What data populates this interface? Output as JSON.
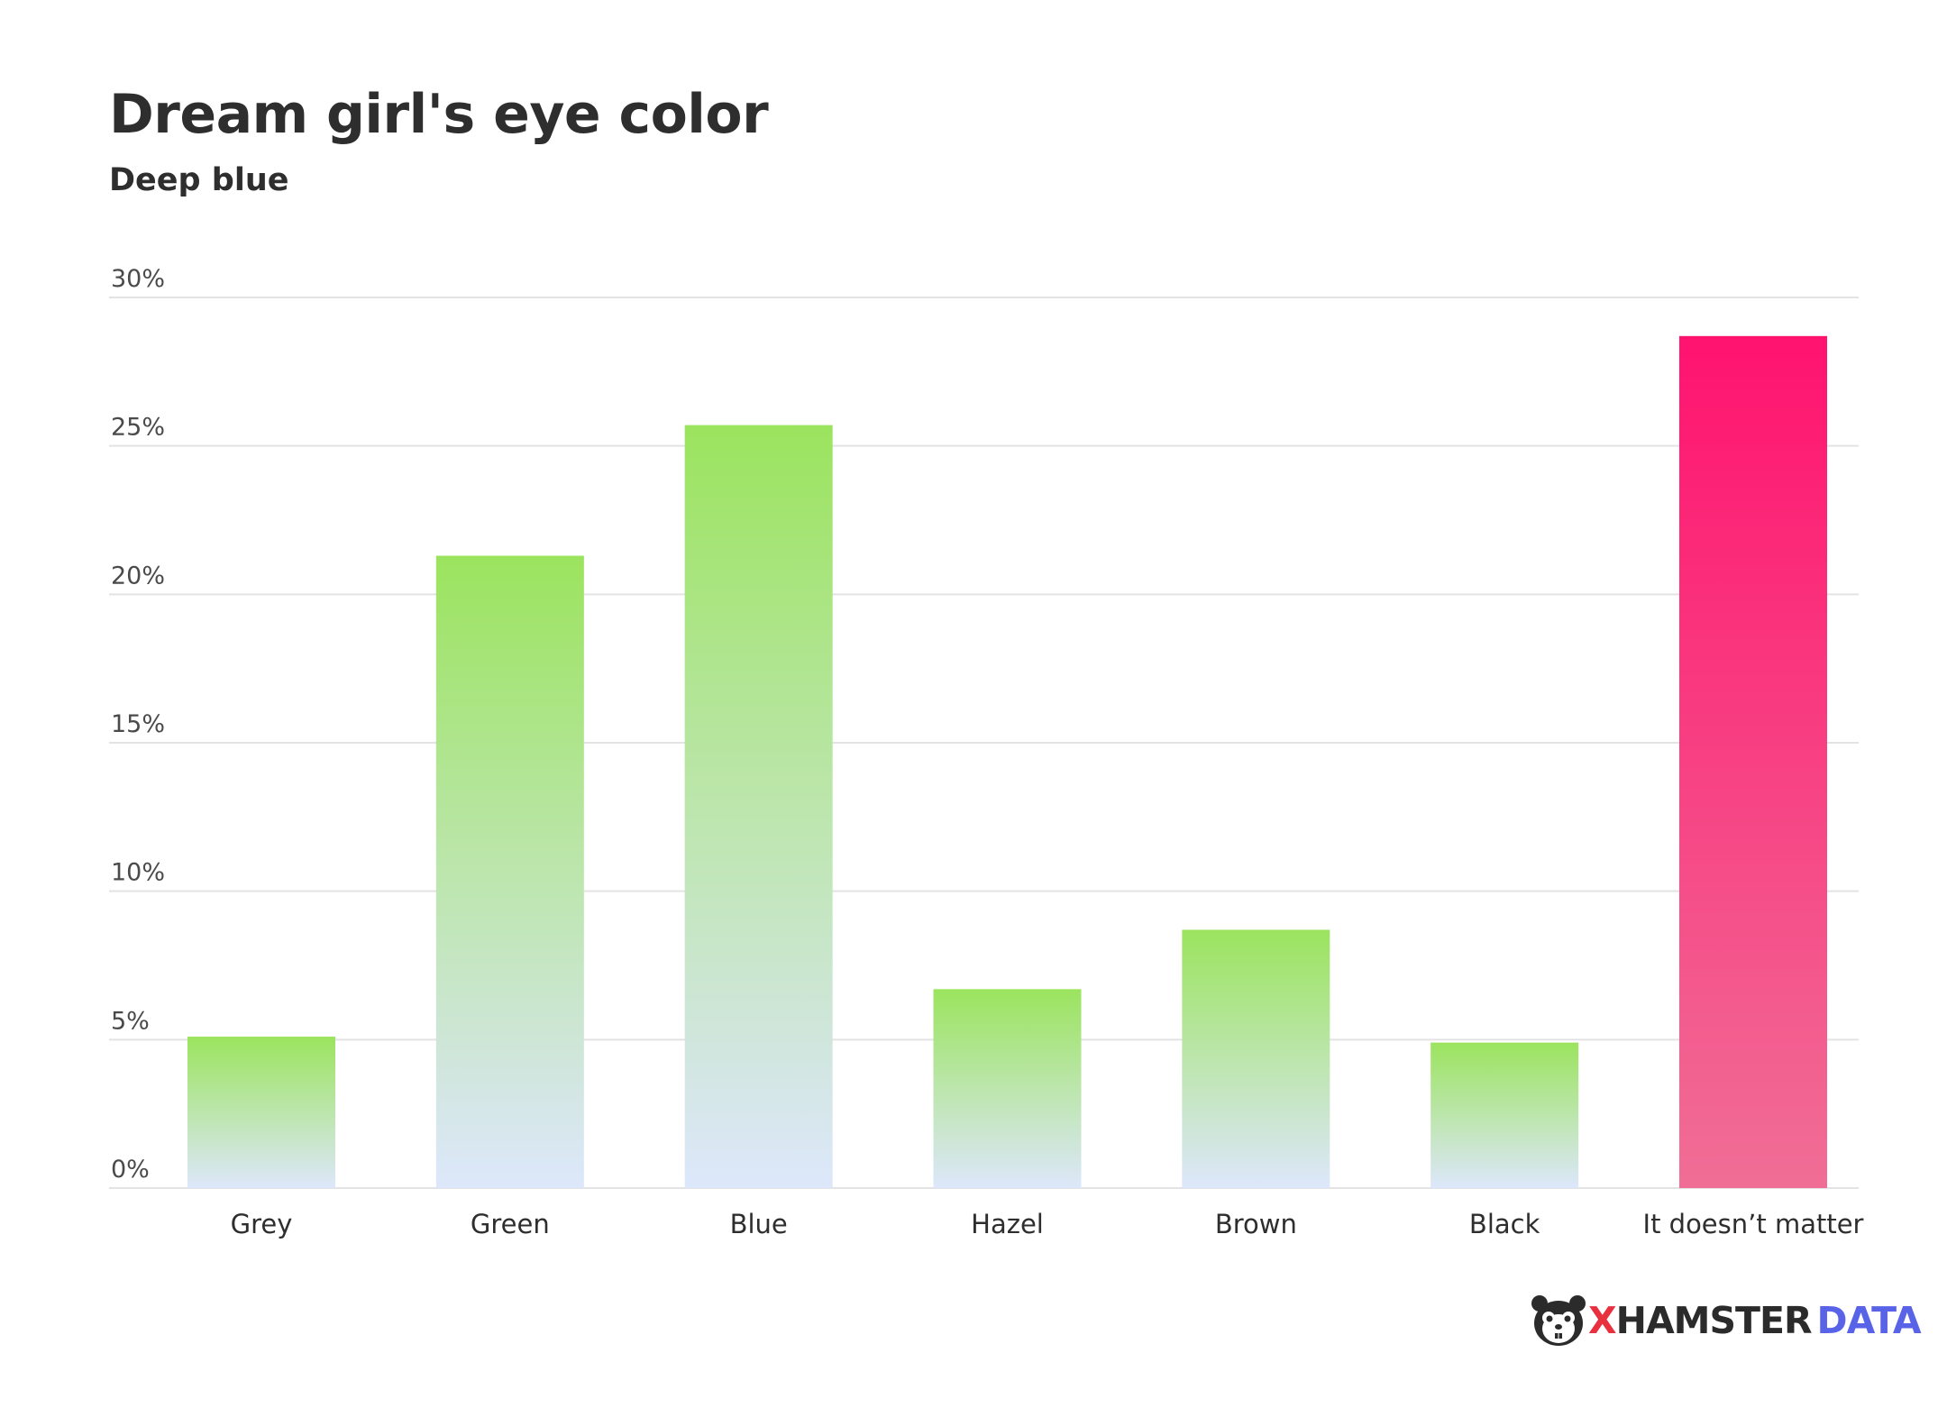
{
  "title": "Dream girl's eye color",
  "subtitle": "Deep blue",
  "chart_data": {
    "type": "bar",
    "categories": [
      "Grey",
      "Green",
      "Blue",
      "Hazel",
      "Brown",
      "Black",
      "It doesn’t matter"
    ],
    "values": [
      5.1,
      21.3,
      25.7,
      6.7,
      8.7,
      4.9,
      28.7
    ],
    "ylim": [
      0,
      30
    ],
    "yticks": [
      0,
      5,
      10,
      15,
      20,
      25,
      30
    ],
    "ytick_labels": [
      "0%",
      "5%",
      "10%",
      "15%",
      "20%",
      "25%",
      "30%"
    ],
    "grid": true,
    "colors": {
      "bar_top": "#9be45e",
      "bar_bottom": "#dde7fb",
      "highlight_top": "#ff136f",
      "highlight_bottom": "#f06e96",
      "grid": "#e3e3e3"
    },
    "highlight_index": 6
  },
  "logo": {
    "x": "X",
    "hamster": "HAMSTER",
    "data": "DATA"
  }
}
